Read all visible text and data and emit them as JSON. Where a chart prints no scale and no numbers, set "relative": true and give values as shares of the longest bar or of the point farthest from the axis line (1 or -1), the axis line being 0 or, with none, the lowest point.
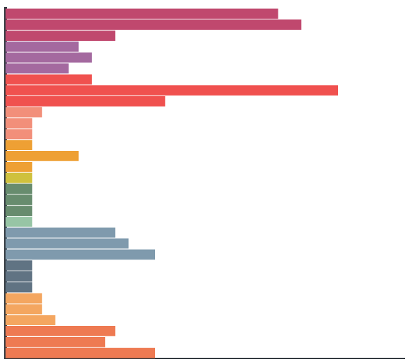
{
  "chart_data": {
    "type": "bar",
    "orientation": "horizontal",
    "relative": true,
    "categories": [
      null,
      null,
      null,
      null,
      null,
      null,
      null,
      null,
      null,
      null,
      null,
      null,
      null,
      null,
      null,
      null,
      null,
      null,
      null,
      null,
      null,
      null,
      null,
      null,
      null,
      null,
      null,
      null,
      null,
      null,
      null,
      null
    ],
    "values": [
      0.82,
      0.89,
      0.33,
      0.22,
      0.26,
      0.19,
      0.26,
      1,
      0.48,
      0.11,
      0.08,
      0.08,
      0.08,
      0.22,
      0.08,
      0.08,
      0.08,
      0.08,
      0.08,
      0.08,
      0.33,
      0.37,
      0.45,
      0.08,
      0.08,
      0.08,
      0.11,
      0.11,
      0.15,
      0.33,
      0.3,
      0.45
    ],
    "colors": [
      "#c0486e",
      "#c0486e",
      "#c0486e",
      "#a4699f",
      "#a4699f",
      "#a4699f",
      "#f0514f",
      "#f0514f",
      "#f0514f",
      "#f28f7a",
      "#f28f7a",
      "#f28f7a",
      "#eea034",
      "#eea034",
      "#eea034",
      "#cfc13d",
      "#678c6e",
      "#678c6e",
      "#678c6e",
      "#97c5a5",
      "#7f9aad",
      "#7f9aad",
      "#7f9aad",
      "#607383",
      "#607383",
      "#607383",
      "#f4a660",
      "#f4a660",
      "#f4a660",
      "#ee7a52",
      "#ee7a52",
      "#ee7a52"
    ]
  }
}
